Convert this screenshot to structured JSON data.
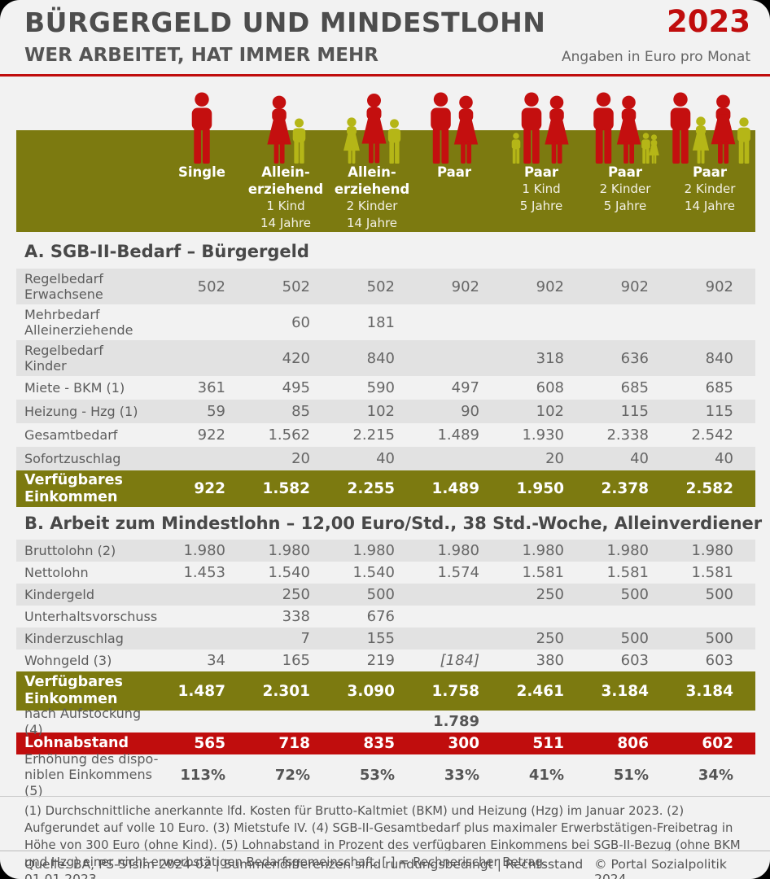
{
  "colors": {
    "accent_red": "#c00d0d",
    "olive_band": "#7c7a10",
    "adult_icon_red": "#c40f0f",
    "child_icon_yellow": "#b5b617",
    "row_shade": "#e2e2e2",
    "background": "#f2f2f2"
  },
  "header": {
    "title": "BÜRGERGELD UND MINDESTLOHN",
    "year": "2023",
    "subtitle": "WER ARBEITET, HAT IMMER MEHR",
    "unit_note": "Angaben in Euro pro Monat"
  },
  "columns": [
    {
      "top": [
        "Single"
      ],
      "sub": [],
      "icons": [
        [
          "man",
          "adult",
          88
        ]
      ]
    },
    {
      "top": [
        "Allein-",
        "erziehend"
      ],
      "sub": [
        "1 Kind",
        "14 Jahre"
      ],
      "icons": [
        [
          "woman",
          "adult",
          84
        ],
        [
          "man",
          "child",
          56
        ]
      ]
    },
    {
      "top": [
        "Allein-",
        "erziehend"
      ],
      "sub": [
        "2 Kinder",
        "14 Jahre"
      ],
      "icons": [
        [
          "woman",
          "child",
          57
        ],
        [
          "woman",
          "adult",
          87
        ],
        [
          "man",
          "child",
          55
        ]
      ]
    },
    {
      "top": [
        "Paar"
      ],
      "sub": [],
      "icons": [
        [
          "man",
          "adult",
          88
        ],
        [
          "woman",
          "adult",
          84
        ]
      ]
    },
    {
      "top": [
        "Paar"
      ],
      "sub": [
        "1 Kind",
        "5 Jahre"
      ],
      "icons": [
        [
          "man",
          "child",
          38
        ],
        [
          "man",
          "adult",
          88
        ],
        [
          "woman",
          "adult",
          84
        ]
      ]
    },
    {
      "top": [
        "Paar"
      ],
      "sub": [
        "2 Kinder",
        "5 Jahre"
      ],
      "icons": [
        [
          "man",
          "adult",
          88
        ],
        [
          "woman",
          "adult",
          84
        ],
        [
          "man",
          "child",
          38
        ],
        [
          "woman",
          "child",
          36
        ]
      ]
    },
    {
      "top": [
        "Paar"
      ],
      "sub": [
        "2 Kinder",
        "14 Jahre"
      ],
      "icons": [
        [
          "man",
          "adult",
          88
        ],
        [
          "woman",
          "child",
          58
        ],
        [
          "woman",
          "adult",
          85
        ],
        [
          "man",
          "child",
          57
        ]
      ]
    }
  ],
  "section_a": {
    "title": "A. SGB-II-Bedarf – Bürgergeld",
    "rows": [
      {
        "label": [
          "Regelbedarf",
          "Erwachsene"
        ],
        "values": [
          "502",
          "502",
          "502",
          "902",
          "902",
          "902",
          "902"
        ],
        "style": "shade"
      },
      {
        "label": [
          "Mehrbedarf",
          "Alleinerziehende"
        ],
        "values": [
          "",
          "60",
          "181",
          "",
          "",
          "",
          ""
        ],
        "style": "plain"
      },
      {
        "label": [
          "Regelbedarf",
          "Kinder"
        ],
        "values": [
          "",
          "420",
          "840",
          "",
          "318",
          "636",
          "840"
        ],
        "style": "shade"
      },
      {
        "label": [
          "Miete - BKM (1)"
        ],
        "values": [
          "361",
          "495",
          "590",
          "497",
          "608",
          "685",
          "685"
        ],
        "style": "plain"
      },
      {
        "label": [
          "Heizung - Hzg (1)"
        ],
        "values": [
          "59",
          "85",
          "102",
          "90",
          "102",
          "115",
          "115"
        ],
        "style": "shade"
      },
      {
        "label": [
          "Gesamtbedarf"
        ],
        "values": [
          "922",
          "1.562",
          "2.215",
          "1.489",
          "1.930",
          "2.338",
          "2.542"
        ],
        "style": "plain"
      },
      {
        "label": [
          "Sofortzuschlag"
        ],
        "values": [
          "",
          "20",
          "40",
          "",
          "20",
          "40",
          "40"
        ],
        "style": "shade"
      },
      {
        "label": [
          "Verfügbares",
          "Einkommen"
        ],
        "values": [
          "922",
          "1.582",
          "2.255",
          "1.489",
          "1.950",
          "2.378",
          "2.582"
        ],
        "style": "olive"
      }
    ]
  },
  "section_b": {
    "title": "B. Arbeit zum Mindestlohn – 12,00 Euro/Std., 38 Std.-Woche, Alleinverdiener",
    "rows": [
      {
        "label": [
          "Bruttolohn (2)"
        ],
        "values": [
          "1.980",
          "1.980",
          "1.980",
          "1.980",
          "1.980",
          "1.980",
          "1.980"
        ],
        "style": "shade"
      },
      {
        "label": [
          "Nettolohn"
        ],
        "values": [
          "1.453",
          "1.540",
          "1.540",
          "1.574",
          "1.581",
          "1.581",
          "1.581"
        ],
        "style": "plain"
      },
      {
        "label": [
          "Kindergeld"
        ],
        "values": [
          "",
          "250",
          "500",
          "",
          "250",
          "500",
          "500"
        ],
        "style": "shade"
      },
      {
        "label": [
          "Unterhaltsvorschuss"
        ],
        "values": [
          "",
          "338",
          "676",
          "",
          "",
          "",
          ""
        ],
        "style": "plain"
      },
      {
        "label": [
          "Kinderzuschlag"
        ],
        "values": [
          "",
          "7",
          "155",
          "",
          "250",
          "500",
          "500"
        ],
        "style": "shade"
      },
      {
        "label": [
          "Wohngeld (3)"
        ],
        "values": [
          "34",
          "165",
          "219",
          "[184]",
          "380",
          "603",
          "603"
        ],
        "style": "plain",
        "italic": [
          3
        ]
      },
      {
        "label": [
          "Verfügbares",
          "Einkommen"
        ],
        "values": [
          "1.487",
          "2.301",
          "3.090",
          "1.758",
          "2.461",
          "3.184",
          "3.184"
        ],
        "style": "olive"
      },
      {
        "label": [
          "nach Aufstockung (4)"
        ],
        "values": [
          "",
          "",
          "",
          "1.789",
          "",
          "",
          ""
        ],
        "style": "plain",
        "vbold": true
      },
      {
        "label": [
          "Lohnabstand"
        ],
        "values": [
          "565",
          "718",
          "835",
          "300",
          "511",
          "806",
          "602"
        ],
        "style": "red"
      },
      {
        "label": [
          "Erhöhung des dispo-",
          "niblen Einkommens (5)"
        ],
        "values": [
          "113%",
          "72%",
          "53%",
          "33%",
          "41%",
          "51%",
          "34%"
        ],
        "style": "pct",
        "vbold": true
      }
    ]
  },
  "chart_data": {
    "type": "table",
    "title": "Bürgergeld und Mindestlohn 2023 – Wer arbeitet, hat immer mehr",
    "unit": "Euro pro Monat",
    "categories": [
      "Single",
      "Alleinerziehend 1 Kind 14 Jahre",
      "Alleinerziehend 2 Kinder 14 Jahre",
      "Paar",
      "Paar 1 Kind 5 Jahre",
      "Paar 2 Kinder 5 Jahre",
      "Paar 2 Kinder 14 Jahre"
    ],
    "sections": [
      {
        "name": "A. SGB-II-Bedarf – Bürgergeld",
        "series": [
          {
            "name": "Regelbedarf Erwachsene",
            "values": [
              502,
              502,
              502,
              902,
              902,
              902,
              902
            ]
          },
          {
            "name": "Mehrbedarf Alleinerziehende",
            "values": [
              null,
              60,
              181,
              null,
              null,
              null,
              null
            ]
          },
          {
            "name": "Regelbedarf Kinder",
            "values": [
              null,
              420,
              840,
              null,
              318,
              636,
              840
            ]
          },
          {
            "name": "Miete - BKM (1)",
            "values": [
              361,
              495,
              590,
              497,
              608,
              685,
              685
            ]
          },
          {
            "name": "Heizung - Hzg (1)",
            "values": [
              59,
              85,
              102,
              90,
              102,
              115,
              115
            ]
          },
          {
            "name": "Gesamtbedarf",
            "values": [
              922,
              1562,
              2215,
              1489,
              1930,
              2338,
              2542
            ]
          },
          {
            "name": "Sofortzuschlag",
            "values": [
              null,
              20,
              40,
              null,
              20,
              40,
              40
            ]
          },
          {
            "name": "Verfügbares Einkommen",
            "values": [
              922,
              1582,
              2255,
              1489,
              1950,
              2378,
              2582
            ]
          }
        ]
      },
      {
        "name": "B. Arbeit zum Mindestlohn – 12,00 Euro/Std., 38 Std.-Woche, Alleinverdiener",
        "series": [
          {
            "name": "Bruttolohn (2)",
            "values": [
              1980,
              1980,
              1980,
              1980,
              1980,
              1980,
              1980
            ]
          },
          {
            "name": "Nettolohn",
            "values": [
              1453,
              1540,
              1540,
              1574,
              1581,
              1581,
              1581
            ]
          },
          {
            "name": "Kindergeld",
            "values": [
              null,
              250,
              500,
              null,
              250,
              500,
              500
            ]
          },
          {
            "name": "Unterhaltsvorschuss",
            "values": [
              null,
              338,
              676,
              null,
              null,
              null,
              null
            ]
          },
          {
            "name": "Kinderzuschlag",
            "values": [
              null,
              7,
              155,
              null,
              250,
              500,
              500
            ]
          },
          {
            "name": "Wohngeld (3)",
            "values": [
              34,
              165,
              219,
              184,
              380,
              603,
              603
            ]
          },
          {
            "name": "Verfügbares Einkommen",
            "values": [
              1487,
              2301,
              3090,
              1758,
              2461,
              3184,
              3184
            ]
          },
          {
            "name": "nach Aufstockung (4)",
            "values": [
              null,
              null,
              null,
              1789,
              null,
              null,
              null
            ]
          },
          {
            "name": "Lohnabstand",
            "values": [
              565,
              718,
              835,
              300,
              511,
              806,
              602
            ]
          },
          {
            "name": "Erhöhung des disponiblen Einkommens (5), Prozent",
            "values": [
              113,
              72,
              53,
              33,
              41,
              51,
              34
            ]
          }
        ]
      }
    ]
  },
  "footnotes": "(1) Durchschnittliche anerkannte lfd. Kosten für Brutto-Kaltmiet (BKM) und Heizung (Hzg) im Januar 2023. (2) Aufgerundet auf volle 10 Euro. (3) Mietstufe IV. (4) SGB-II-Gesamtbedarf plus maximaler Erwerbstätigen-Freibetrag in Höhe von 300 Euro (ohne Kind). (5) Lohnabstand in Prozent des verfügbaren Einkommens bei SGB-II-Bezug (ohne BKM und Hzg) einer nicht erwerbstätigen Bedarfsgemeinschaft. [ ] = Rechnerischer Betrag.",
  "footer": {
    "source": "Quelle: BA, PS-STsim 2024-02 | Summendifferenzen sind rundungsbedingt | Rechtsstand 01.01.2023",
    "copyright": "© Portal Sozialpolitik 2024"
  }
}
